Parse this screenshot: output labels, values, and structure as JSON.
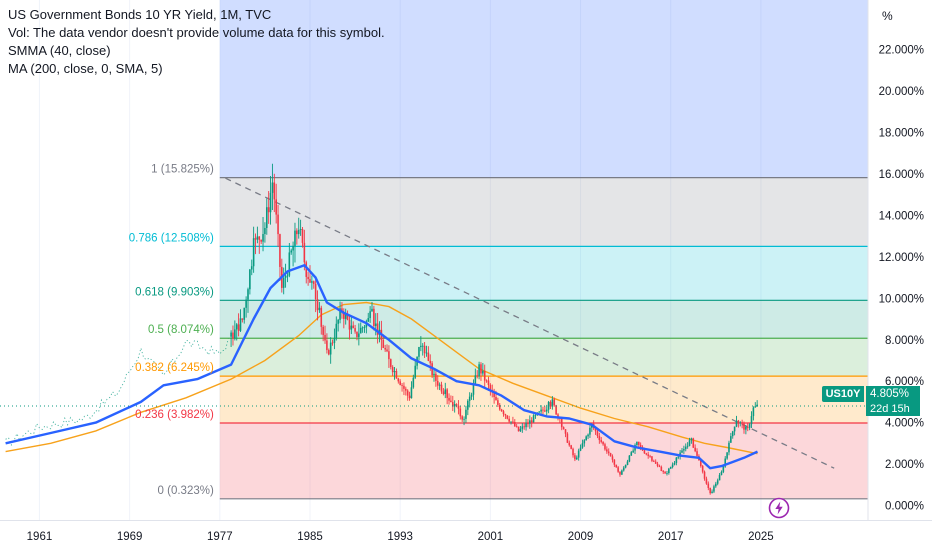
{
  "legend": {
    "title": "US Government Bonds 10 YR Yield, 1M, TVC",
    "volume_note": "Vol: The data vendor doesn't provide volume data for this symbol.",
    "smma": "SMMA (40, close)",
    "ma": "MA (200, close, 0, SMA, 5)"
  },
  "scale_mode": "%",
  "price_tag": {
    "symbol": "US10Y",
    "value": "4.805%",
    "countdown": "22d 15h"
  },
  "events_icon": "lightning-icon",
  "colors": {
    "up": "#089981",
    "down": "#f23645",
    "smma": "#2962ff",
    "ma": "#f7a21b",
    "fib_0": "#787b86",
    "fib_0236": "#f23645",
    "fib_0382": "#ff9800",
    "fib_05": "#4caf50",
    "fib_0618": "#089981",
    "fib_0786": "#00bcd4",
    "fib_1": "#787b86",
    "fib_top": "#2962ff"
  },
  "chart_data": {
    "type": "candlestick",
    "title": "US Government Bonds 10 YR Yield, 1M, TVC",
    "ylabel": "%",
    "ylim": [
      -0.7,
      24.4
    ],
    "xlim": [
      1957.5,
      2034.5
    ],
    "y_ticks": [
      "0.000%",
      "2.000%",
      "4.000%",
      "6.000%",
      "8.000%",
      "10.000%",
      "12.000%",
      "14.000%",
      "16.000%",
      "18.000%",
      "20.000%",
      "22.000%"
    ],
    "y_tick_values": [
      0,
      2,
      4,
      6,
      8,
      10,
      12,
      14,
      16,
      18,
      20,
      22
    ],
    "x_ticks": [
      "1961",
      "1969",
      "1977",
      "1985",
      "1993",
      "2001",
      "2009",
      "2017",
      "2025"
    ],
    "x_tick_values": [
      1961,
      1969,
      1977,
      1985,
      1993,
      2001,
      2009,
      2017,
      2025
    ],
    "price_path": {
      "x": [
        1958,
        1961,
        1965,
        1968,
        1970,
        1972,
        1974,
        1977,
        1979,
        1980,
        1981,
        1981.7,
        1982.5,
        1983,
        1984,
        1984.6,
        1985.5,
        1986.5,
        1987,
        1987.8,
        1989,
        1990.5,
        1992,
        1993.8,
        1994.8,
        1996,
        1998.6,
        2000,
        2001.5,
        2003.5,
        2006.5,
        2008.5,
        2010,
        2012.5,
        2014,
        2016.5,
        2018.8,
        2020.5,
        2021.5,
        2022.8,
        2023.8,
        2024.3,
        2024.7
      ],
      "y": [
        3.0,
        3.8,
        4.2,
        5.5,
        7.5,
        6.2,
        7.9,
        7.3,
        9.0,
        12.5,
        13.5,
        15.8,
        10.5,
        11.5,
        13.6,
        11.5,
        10.2,
        7.3,
        8.0,
        9.5,
        8.2,
        9.2,
        7.0,
        5.2,
        7.9,
        6.2,
        4.2,
        6.7,
        5.0,
        3.6,
        5.0,
        2.2,
        3.9,
        1.5,
        3.0,
        1.5,
        3.2,
        0.55,
        1.6,
        4.2,
        3.6,
        4.7,
        4.8
      ]
    },
    "candles_from_year": 1978,
    "series": [
      {
        "name": "SMMA (40, close)",
        "type": "line",
        "x": [
          1958,
          1962,
          1966,
          1970,
          1972,
          1975,
          1978,
          1980,
          1981.5,
          1983,
          1984.5,
          1985.5,
          1986.5,
          1988,
          1990,
          1992,
          1994,
          1996,
          1998,
          2000,
          2002,
          2004,
          2006,
          2008,
          2010,
          2012,
          2014,
          2016,
          2018,
          2019.5,
          2020.5,
          2021.5,
          2022.5,
          2023.5,
          2024.7
        ],
        "y": [
          3.0,
          3.5,
          4.0,
          5.0,
          5.8,
          6.1,
          6.8,
          9.0,
          10.5,
          11.3,
          11.6,
          11.0,
          9.8,
          9.3,
          8.8,
          8.0,
          7.1,
          6.6,
          6.0,
          5.8,
          5.3,
          4.6,
          4.3,
          4.2,
          3.9,
          3.1,
          2.8,
          2.6,
          2.4,
          2.3,
          1.8,
          1.9,
          2.1,
          2.3,
          2.6
        ]
      },
      {
        "name": "MA (200, close, 0, SMA, 5)",
        "type": "line",
        "x": [
          1958,
          1962,
          1966,
          1970,
          1974,
          1978,
          1981,
          1984,
          1986,
          1988,
          1990,
          1992,
          1994,
          1996,
          1998,
          2000,
          2003,
          2006,
          2009,
          2012,
          2015,
          2018,
          2020,
          2022,
          2024.7
        ],
        "y": [
          2.6,
          3.0,
          3.6,
          4.5,
          5.2,
          6.1,
          7.0,
          8.2,
          9.2,
          9.7,
          9.8,
          9.6,
          9.0,
          8.2,
          7.4,
          6.6,
          5.9,
          5.3,
          4.7,
          4.2,
          3.8,
          3.3,
          3.0,
          2.8,
          2.5
        ]
      }
    ],
    "fib_retracement": {
      "start_x": 1977.0,
      "low": 0.323,
      "high": 15.825,
      "levels": [
        {
          "ratio": 0,
          "value": 0.323,
          "label": "0 (0.323%)"
        },
        {
          "ratio": 0.236,
          "value": 3.982,
          "label": "0.236 (3.982%)"
        },
        {
          "ratio": 0.382,
          "value": 6.245,
          "label": "0.382 (6.245%)"
        },
        {
          "ratio": 0.5,
          "value": 8.074,
          "label": "0.5 (8.074%)"
        },
        {
          "ratio": 0.618,
          "value": 9.903,
          "label": "0.618 (9.903%)"
        },
        {
          "ratio": 0.786,
          "value": 12.508,
          "label": "0.786 (12.508%)"
        },
        {
          "ratio": 1,
          "value": 15.825,
          "label": "1 (15.825%)"
        }
      ]
    },
    "trend_line": {
      "x": [
        1977.5,
        2031.5
      ],
      "y": [
        15.8,
        1.8
      ]
    },
    "last_value": 4.805,
    "last_label_value": "4.805%",
    "grid": true,
    "legend": "top-left"
  }
}
